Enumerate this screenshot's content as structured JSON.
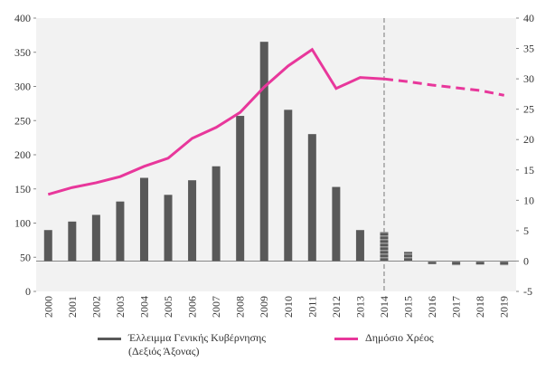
{
  "chart_data": {
    "type": "bar_line",
    "categories": [
      "2000",
      "2001",
      "2002",
      "2003",
      "2004",
      "2005",
      "2006",
      "2007",
      "2008",
      "2009",
      "2010",
      "2011",
      "2012",
      "2013",
      "2014",
      "2015",
      "2016",
      "2017",
      "2018",
      "2019"
    ],
    "series": [
      {
        "name": "Έλλειμμα Γενικής Κυβέρνησης (Δεξιός Άξονας)",
        "type": "bar",
        "axis": "y2",
        "color": "#595959",
        "values": [
          5.1,
          6.5,
          7.6,
          9.8,
          13.7,
          10.9,
          13.3,
          15.6,
          23.9,
          36.1,
          24.9,
          20.9,
          12.2,
          5.1,
          4.8,
          1.5,
          -0.5,
          -0.7,
          -0.6,
          -0.7
        ]
      },
      {
        "name": "Δημόσιο Χρέος",
        "type": "line",
        "color": "#e8379b",
        "values": [
          142,
          152,
          159,
          168,
          183,
          195,
          224,
          240,
          262,
          299,
          330,
          354,
          297,
          313,
          311,
          307,
          302,
          298,
          294,
          287
        ]
      }
    ],
    "projection_start": "2014",
    "ylim": [
      0,
      400
    ],
    "yticks": [
      0,
      50,
      100,
      150,
      200,
      250,
      300,
      350,
      400
    ],
    "y2lim": [
      -5,
      40
    ],
    "y2ticks": [
      -5,
      0,
      5,
      10,
      15,
      20,
      25,
      30,
      35,
      40
    ]
  }
}
